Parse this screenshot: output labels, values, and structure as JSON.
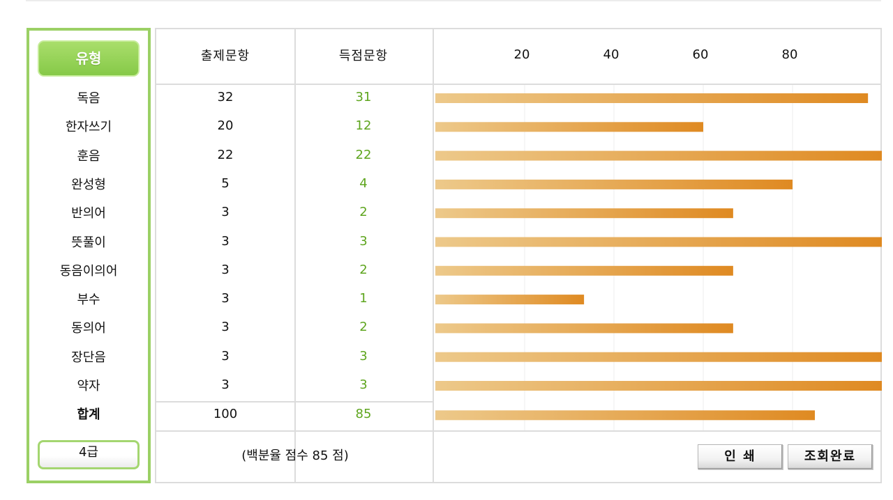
{
  "panel": {
    "header": "유형",
    "grade": "4급"
  },
  "columns": {
    "total": "출제문항",
    "score": "득점문항"
  },
  "rows": [
    {
      "type": "독음",
      "total": "32",
      "score": "31"
    },
    {
      "type": "한자쓰기",
      "total": "20",
      "score": "12"
    },
    {
      "type": "훈음",
      "total": "22",
      "score": "22"
    },
    {
      "type": "완성형",
      "total": "5",
      "score": "4"
    },
    {
      "type": "반의어",
      "total": "3",
      "score": "2"
    },
    {
      "type": "뜻풀이",
      "total": "3",
      "score": "3"
    },
    {
      "type": "동음이의어",
      "total": "3",
      "score": "2"
    },
    {
      "type": "부수",
      "total": "3",
      "score": "1"
    },
    {
      "type": "동의어",
      "total": "3",
      "score": "2"
    },
    {
      "type": "장단음",
      "total": "3",
      "score": "3"
    },
    {
      "type": "약자",
      "total": "3",
      "score": "3"
    }
  ],
  "summary": {
    "type": "합계",
    "total": "100",
    "score": "85"
  },
  "note": "(백분율 점수 85 점)",
  "buttons": {
    "print": "인 쇄",
    "done": "조회완료"
  },
  "colors": {
    "panel_border": "#9bd065",
    "score_text": "#5ea51e",
    "bar_start": "#edc98a",
    "bar_end": "#df8a22"
  },
  "chart_data": {
    "type": "bar",
    "orientation": "horizontal",
    "categories": [
      "독음",
      "한자쓰기",
      "훈음",
      "완성형",
      "반의어",
      "뜻풀이",
      "동음이의어",
      "부수",
      "동의어",
      "장단음",
      "약자",
      "합계"
    ],
    "values": [
      96.9,
      60,
      100,
      80,
      66.7,
      100,
      66.7,
      33.3,
      66.7,
      100,
      100,
      85
    ],
    "xlim": [
      0,
      100
    ],
    "xticks": [
      20,
      40,
      60,
      80
    ],
    "grid": true
  }
}
